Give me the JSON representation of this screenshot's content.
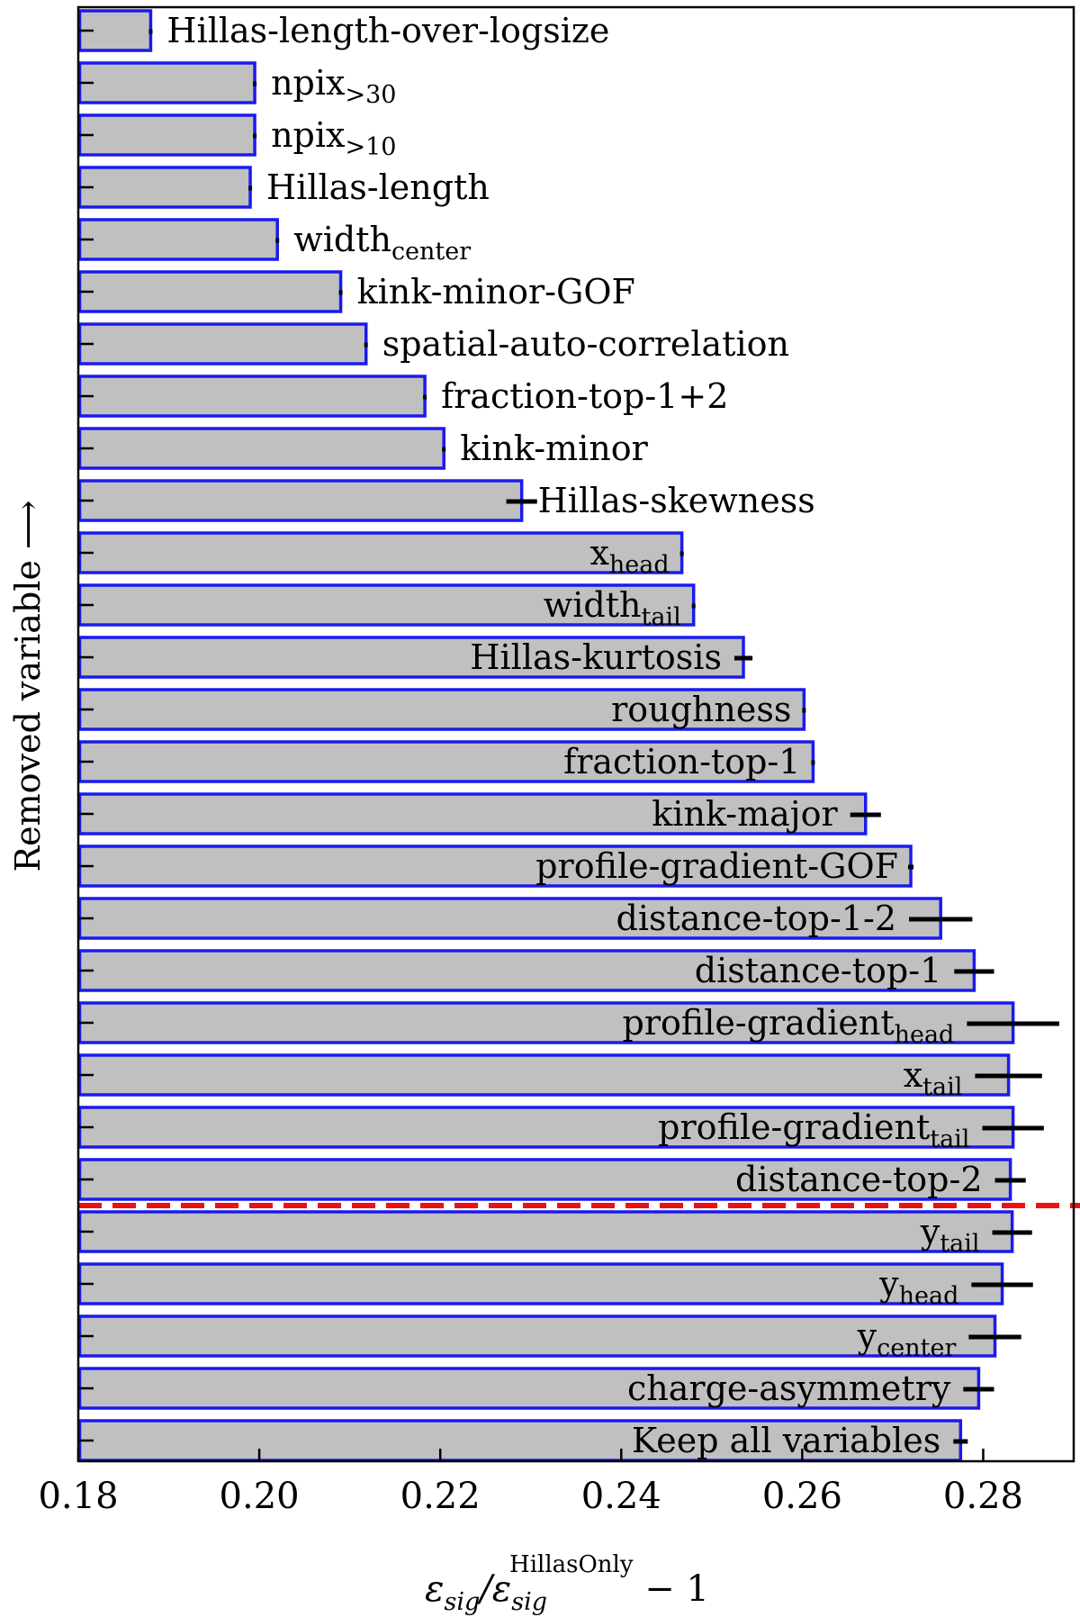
{
  "chart_data": {
    "type": "bar",
    "orientation": "horizontal",
    "title": "",
    "xlabel": {
      "main": "ε",
      "sub1": "sig",
      "mid": "/ε",
      "sub2": "sig",
      "sup": "HillasOnly",
      "tail": " − 1"
    },
    "ylabel": "Removed variable ⟶",
    "xlim": [
      0.18,
      0.29
    ],
    "xticks": [
      "0.18",
      "0.20",
      "0.22",
      "0.24",
      "0.26",
      "0.28"
    ],
    "xtick_values": [
      0.18,
      0.2,
      0.22,
      0.24,
      0.26,
      0.28
    ],
    "reference_value": 0.2832,
    "reference_line_after_index": 22,
    "bars": [
      {
        "label": "Hillas-length-over-logsize",
        "sub": "",
        "value": 0.188,
        "err": 0.0,
        "label_outside": true
      },
      {
        "label": "npix",
        "sub": ">30",
        "value": 0.1995,
        "err": 0.0,
        "label_outside": true
      },
      {
        "label": "npix",
        "sub": ">10",
        "value": 0.1995,
        "err": 0.0,
        "label_outside": true
      },
      {
        "label": "Hillas-length",
        "sub": "",
        "value": 0.199,
        "err": 0.0,
        "label_outside": true
      },
      {
        "label": "width",
        "sub": "center",
        "value": 0.202,
        "err": 0.0,
        "label_outside": true
      },
      {
        "label": "kink-minor-GOF",
        "sub": "",
        "value": 0.209,
        "err": 0.0,
        "label_outside": true
      },
      {
        "label": "spatial-auto-correlation",
        "sub": "",
        "value": 0.2118,
        "err": 0.0,
        "label_outside": true
      },
      {
        "label": "fraction-top-1+2",
        "sub": "",
        "value": 0.2183,
        "err": 0.0,
        "label_outside": true
      },
      {
        "label": "kink-minor",
        "sub": "",
        "value": 0.2204,
        "err": 0.0,
        "label_outside": true
      },
      {
        "label": "Hillas-skewness",
        "sub": "",
        "value": 0.229,
        "err": 0.0017,
        "label_outside": true
      },
      {
        "label": "x",
        "sub": "head",
        "value": 0.2467,
        "err": 0.0,
        "label_outside": false
      },
      {
        "label": "width",
        "sub": "tail",
        "value": 0.248,
        "err": 0.0,
        "label_outside": false
      },
      {
        "label": "Hillas-kurtosis",
        "sub": "",
        "value": 0.2535,
        "err": 0.001,
        "label_outside": false
      },
      {
        "label": "roughness",
        "sub": "",
        "value": 0.2602,
        "err": 0.0,
        "label_outside": false
      },
      {
        "label": "fraction-top-1",
        "sub": "",
        "value": 0.2612,
        "err": 0.0,
        "label_outside": false
      },
      {
        "label": "kink-major",
        "sub": "",
        "value": 0.267,
        "err": 0.0017,
        "label_outside": false
      },
      {
        "label": "profile-gradient-GOF",
        "sub": "",
        "value": 0.272,
        "err": 0.0003,
        "label_outside": false
      },
      {
        "label": "distance-top-1-2",
        "sub": "",
        "value": 0.2753,
        "err": 0.0035,
        "label_outside": false
      },
      {
        "label": "distance-top-1",
        "sub": "",
        "value": 0.279,
        "err": 0.0022,
        "label_outside": false
      },
      {
        "label": "profile-gradient",
        "sub": "head",
        "value": 0.2833,
        "err": 0.0051,
        "label_outside": false
      },
      {
        "label": "x",
        "sub": "tail",
        "value": 0.2828,
        "err": 0.0037,
        "label_outside": false
      },
      {
        "label": "profile-gradient",
        "sub": "tail",
        "value": 0.2833,
        "err": 0.0034,
        "label_outside": false
      },
      {
        "label": "distance-top-2",
        "sub": "",
        "value": 0.283,
        "err": 0.0017,
        "label_outside": false
      },
      {
        "label": "y",
        "sub": "tail",
        "value": 0.2832,
        "err": 0.0022,
        "label_outside": false
      },
      {
        "label": "y",
        "sub": "head",
        "value": 0.2821,
        "err": 0.0034,
        "label_outside": false
      },
      {
        "label": "y",
        "sub": "center",
        "value": 0.2813,
        "err": 0.0029,
        "label_outside": false
      },
      {
        "label": "charge-asymmetry",
        "sub": "",
        "value": 0.2795,
        "err": 0.0017,
        "label_outside": false
      },
      {
        "label": "Keep all variables",
        "sub": "",
        "value": 0.2775,
        "err": 0.0008,
        "label_outside": false
      }
    ],
    "colors": {
      "bar_fill": "#c0c0c0",
      "bar_edge": "#1a1aee",
      "errorbar": "#000000",
      "reference_line": "#ee1111"
    }
  }
}
